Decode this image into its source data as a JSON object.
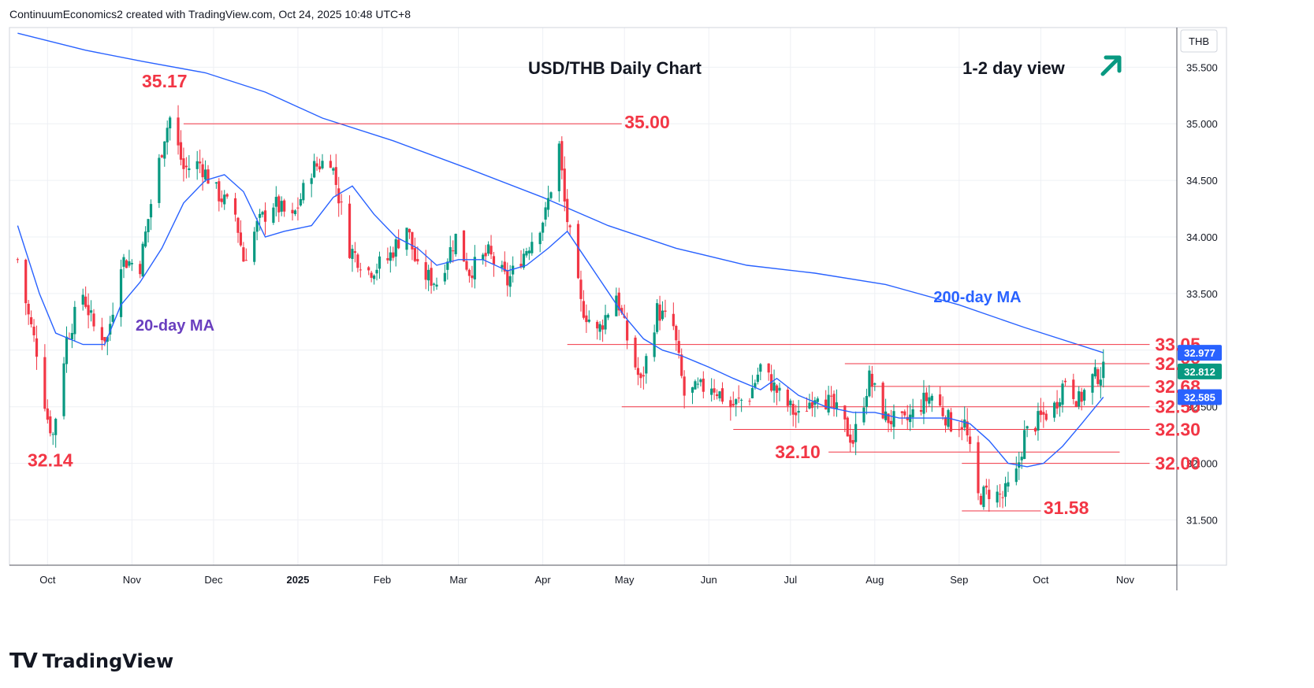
{
  "header": {
    "attribution": "ContinuumEconomics2 created with TradingView.com, Oct 24, 2025 10:48 UTC+8"
  },
  "footer": {
    "brand": "TradingView"
  },
  "colors": {
    "up": "#089981",
    "down": "#f23645",
    "ma": "#2962ff",
    "level": "#f23645",
    "label": "#f23645",
    "arrow": "#089981",
    "ma20_text": "#6a3fbf",
    "ma200_text": "#2962ff",
    "price_box": "#2962ff",
    "last_box": "#089981"
  },
  "chart_data": {
    "type": "candlestick",
    "title": "USD/THB Daily Chart",
    "view_label": "1-2 day view",
    "view_icon": "arrow-up-right-icon",
    "currency": "THB",
    "ylim": [
      31.1,
      35.85
    ],
    "y_ticks": [
      "35.500",
      "35.000",
      "34.500",
      "34.000",
      "33.500",
      "33.000",
      "32.500",
      "32.000",
      "31.500"
    ],
    "x_ticks": [
      "Oct",
      "Nov",
      "Dec",
      "2025",
      "Feb",
      "Mar",
      "Apr",
      "May",
      "Jun",
      "Jul",
      "Aug",
      "Sep",
      "Oct",
      "Nov"
    ],
    "price_tags": [
      {
        "value": "32.977",
        "kind": "ma200"
      },
      {
        "value": "32.812",
        "kind": "last"
      },
      {
        "value": "32.585",
        "kind": "ma20"
      }
    ],
    "levels": [
      {
        "value": 35.0,
        "label": "35.00"
      },
      {
        "value": 33.05,
        "label": "33.05"
      },
      {
        "value": 32.88,
        "label": "32.88"
      },
      {
        "value": 32.68,
        "label": "32.68"
      },
      {
        "value": 32.5,
        "label": "32.50"
      },
      {
        "value": 32.3,
        "label": "32.30"
      },
      {
        "value": 32.1,
        "label": "32.10"
      },
      {
        "value": 32.0,
        "label": "32.00"
      },
      {
        "value": 31.58,
        "label": "31.58"
      }
    ],
    "annotations": [
      {
        "text": "35.17",
        "value": 35.17
      },
      {
        "text": "32.14",
        "value": 32.14
      }
    ],
    "ma_labels": {
      "ma20": "20-day MA",
      "ma200": "200-day MA"
    },
    "close_path": [
      [
        "2024-09-20",
        33.8
      ],
      [
        "2024-09-24",
        33.3
      ],
      [
        "2024-09-27",
        33.0
      ],
      [
        "2024-10-01",
        32.4
      ],
      [
        "2024-10-03",
        32.25
      ],
      [
        "2024-10-08",
        33.1
      ],
      [
        "2024-10-14",
        33.5
      ],
      [
        "2024-10-18",
        33.2
      ],
      [
        "2024-10-23",
        33.1
      ],
      [
        "2024-10-28",
        33.8
      ],
      [
        "2024-11-04",
        33.75
      ],
      [
        "2024-11-08",
        34.3
      ],
      [
        "2024-11-13",
        34.9
      ],
      [
        "2024-11-15",
        35.05
      ],
      [
        "2024-11-20",
        34.6
      ],
      [
        "2024-11-26",
        34.65
      ],
      [
        "2024-12-02",
        34.4
      ],
      [
        "2024-12-09",
        34.2
      ],
      [
        "2024-12-12",
        33.8
      ],
      [
        "2024-12-17",
        34.1
      ],
      [
        "2024-12-23",
        34.3
      ],
      [
        "2024-12-30",
        34.15
      ],
      [
        "2025-01-06",
        34.6
      ],
      [
        "2025-01-13",
        34.7
      ],
      [
        "2025-01-20",
        33.9
      ],
      [
        "2025-01-27",
        33.7
      ],
      [
        "2025-02-03",
        33.8
      ],
      [
        "2025-02-10",
        34.1
      ],
      [
        "2025-02-14",
        33.7
      ],
      [
        "2025-02-21",
        33.6
      ],
      [
        "2025-02-28",
        34.0
      ],
      [
        "2025-03-05",
        33.7
      ],
      [
        "2025-03-12",
        33.85
      ],
      [
        "2025-03-19",
        33.6
      ],
      [
        "2025-03-26",
        33.9
      ],
      [
        "2025-04-02",
        34.2
      ],
      [
        "2025-04-07",
        34.8
      ],
      [
        "2025-04-09",
        34.3
      ],
      [
        "2025-04-15",
        33.4
      ],
      [
        "2025-04-21",
        33.15
      ],
      [
        "2025-04-28",
        33.5
      ],
      [
        "2025-05-02",
        33.1
      ],
      [
        "2025-05-07",
        32.7
      ],
      [
        "2025-05-13",
        33.35
      ],
      [
        "2025-05-19",
        33.2
      ],
      [
        "2025-05-23",
        32.6
      ],
      [
        "2025-06-02",
        32.7
      ],
      [
        "2025-06-09",
        32.5
      ],
      [
        "2025-06-16",
        32.6
      ],
      [
        "2025-06-20",
        32.85
      ],
      [
        "2025-06-27",
        32.6
      ],
      [
        "2025-07-04",
        32.4
      ],
      [
        "2025-07-11",
        32.65
      ],
      [
        "2025-07-18",
        32.45
      ],
      [
        "2025-07-24",
        32.2
      ],
      [
        "2025-07-30",
        32.75
      ],
      [
        "2025-08-05",
        32.4
      ],
      [
        "2025-08-12",
        32.35
      ],
      [
        "2025-08-19",
        32.55
      ],
      [
        "2025-08-22",
        32.6
      ],
      [
        "2025-08-29",
        32.35
      ],
      [
        "2025-09-03",
        32.35
      ],
      [
        "2025-09-08",
        31.7
      ],
      [
        "2025-09-12",
        31.75
      ],
      [
        "2025-09-17",
        31.7
      ],
      [
        "2025-09-22",
        31.9
      ],
      [
        "2025-09-25",
        32.25
      ],
      [
        "2025-10-01",
        32.4
      ],
      [
        "2025-10-06",
        32.5
      ],
      [
        "2025-10-10",
        32.75
      ],
      [
        "2025-10-15",
        32.55
      ],
      [
        "2025-10-20",
        32.75
      ],
      [
        "2025-10-24",
        32.81
      ]
    ],
    "ma20": [
      [
        "2024-09-20",
        34.1
      ],
      [
        "2024-09-28",
        33.5
      ],
      [
        "2024-10-04",
        33.15
      ],
      [
        "2024-10-14",
        33.05
      ],
      [
        "2024-10-22",
        33.05
      ],
      [
        "2024-10-28",
        33.4
      ],
      [
        "2024-11-04",
        33.6
      ],
      [
        "2024-11-12",
        33.9
      ],
      [
        "2024-11-20",
        34.3
      ],
      [
        "2024-11-28",
        34.5
      ],
      [
        "2024-12-05",
        34.55
      ],
      [
        "2024-12-12",
        34.4
      ],
      [
        "2024-12-20",
        34.0
      ],
      [
        "2024-12-27",
        34.05
      ],
      [
        "2025-01-06",
        34.1
      ],
      [
        "2025-01-14",
        34.35
      ],
      [
        "2025-01-21",
        34.45
      ],
      [
        "2025-01-29",
        34.2
      ],
      [
        "2025-02-06",
        34.0
      ],
      [
        "2025-02-14",
        33.9
      ],
      [
        "2025-02-21",
        33.75
      ],
      [
        "2025-03-01",
        33.8
      ],
      [
        "2025-03-10",
        33.8
      ],
      [
        "2025-03-19",
        33.7
      ],
      [
        "2025-03-26",
        33.75
      ],
      [
        "2025-04-03",
        33.9
      ],
      [
        "2025-04-10",
        34.05
      ],
      [
        "2025-04-17",
        33.8
      ],
      [
        "2025-04-24",
        33.55
      ],
      [
        "2025-05-01",
        33.3
      ],
      [
        "2025-05-08",
        33.1
      ],
      [
        "2025-05-15",
        33.0
      ],
      [
        "2025-05-22",
        32.95
      ],
      [
        "2025-06-01",
        32.85
      ],
      [
        "2025-06-10",
        32.75
      ],
      [
        "2025-06-20",
        32.65
      ],
      [
        "2025-06-26",
        32.75
      ],
      [
        "2025-07-04",
        32.6
      ],
      [
        "2025-07-14",
        32.5
      ],
      [
        "2025-07-24",
        32.45
      ],
      [
        "2025-08-01",
        32.45
      ],
      [
        "2025-08-10",
        32.4
      ],
      [
        "2025-08-18",
        32.4
      ],
      [
        "2025-08-28",
        32.4
      ],
      [
        "2025-09-05",
        32.35
      ],
      [
        "2025-09-12",
        32.2
      ],
      [
        "2025-09-19",
        32.0
      ],
      [
        "2025-09-26",
        31.97
      ],
      [
        "2025-10-02",
        32.0
      ],
      [
        "2025-10-09",
        32.15
      ],
      [
        "2025-10-16",
        32.35
      ],
      [
        "2025-10-24",
        32.585
      ]
    ],
    "ma200": [
      [
        "2024-09-20",
        35.8
      ],
      [
        "2024-10-15",
        35.65
      ],
      [
        "2024-11-05",
        35.55
      ],
      [
        "2024-11-28",
        35.45
      ],
      [
        "2024-12-20",
        35.28
      ],
      [
        "2025-01-10",
        35.05
      ],
      [
        "2025-02-05",
        34.85
      ],
      [
        "2025-03-05",
        34.6
      ],
      [
        "2025-04-01",
        34.35
      ],
      [
        "2025-04-25",
        34.1
      ],
      [
        "2025-05-20",
        33.9
      ],
      [
        "2025-06-15",
        33.75
      ],
      [
        "2025-07-10",
        33.68
      ],
      [
        "2025-08-05",
        33.58
      ],
      [
        "2025-09-01",
        33.4
      ],
      [
        "2025-09-25",
        33.2
      ],
      [
        "2025-10-24",
        32.977
      ]
    ]
  }
}
